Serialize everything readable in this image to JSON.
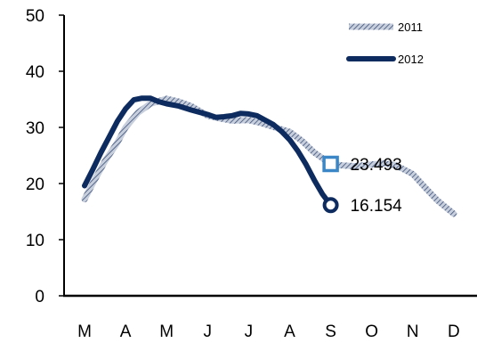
{
  "chart_data": {
    "type": "line",
    "categories": [
      "M",
      "A",
      "M",
      "J",
      "J",
      "A",
      "S",
      "O",
      "N",
      "D"
    ],
    "ylim": [
      0,
      50
    ],
    "yticks": [
      0,
      10,
      20,
      30,
      40,
      50
    ],
    "grid": false,
    "legend_position": "top-right",
    "series": [
      {
        "name": "2011",
        "color": "#7f8fb0",
        "style": "hatched",
        "x": [
          0,
          0.2,
          0.5,
          0.8,
          1,
          1.3,
          1.6,
          2,
          2.3,
          2.6,
          3,
          3.3,
          3.6,
          4,
          4.3,
          4.6,
          5,
          5.3,
          5.6,
          6,
          6.3,
          6.6,
          7,
          7.3,
          7.6,
          8,
          8.3,
          8.6,
          9
        ],
        "values": [
          17.2,
          20,
          24,
          27.3,
          30,
          32.6,
          34.2,
          35.1,
          34.6,
          33.8,
          32.1,
          31.6,
          31.2,
          31.3,
          30.8,
          30.1,
          29.2,
          27.6,
          25.5,
          23.493,
          23.2,
          23.1,
          23.4,
          23.6,
          23.2,
          21.7,
          19.3,
          17,
          14.6
        ]
      },
      {
        "name": "2012",
        "color": "#0d2b5e",
        "style": "solid",
        "x": [
          0,
          0.2,
          0.4,
          0.6,
          0.8,
          1,
          1.2,
          1.4,
          1.6,
          1.8,
          2,
          2.3,
          2.6,
          3,
          3.2,
          3.4,
          3.6,
          3.8,
          4,
          4.2,
          4.4,
          4.6,
          4.8,
          5,
          5.2,
          5.4,
          5.6,
          5.8,
          6
        ],
        "values": [
          19.6,
          22.5,
          25.5,
          28.3,
          31.1,
          33.3,
          34.9,
          35.2,
          35.2,
          34.6,
          34.2,
          33.8,
          33.1,
          32.3,
          31.8,
          31.9,
          32.1,
          32.5,
          32.4,
          32.1,
          31.3,
          30.5,
          29.3,
          27.8,
          25.8,
          23.4,
          20.6,
          18.1,
          16.154
        ]
      }
    ],
    "annotations": [
      {
        "series": "2011",
        "x": 6,
        "value": 23.493,
        "label": "23.493",
        "marker": "square",
        "color": "#3a86c6"
      },
      {
        "series": "2012",
        "x": 6,
        "value": 16.154,
        "label": "16.154",
        "marker": "circle",
        "color": "#0d2b5e"
      }
    ]
  }
}
